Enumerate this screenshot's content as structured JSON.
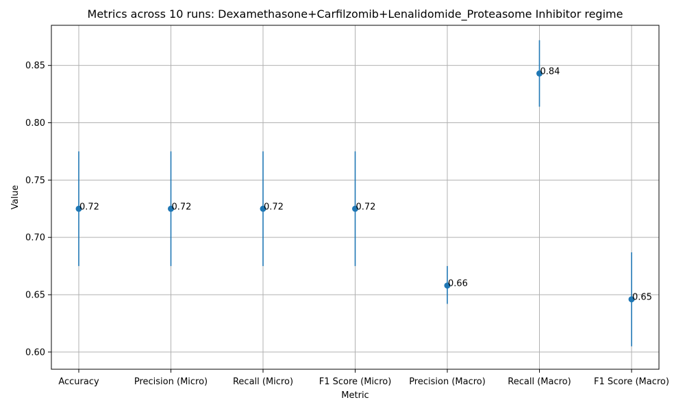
{
  "chart_data": {
    "type": "scatter",
    "title": "Metrics across 10 runs: Dexamethasone+Carfilzomib+Lenalidomide_Proteasome Inhibitor regime",
    "xlabel": "Metric",
    "ylabel": "Value",
    "categories": [
      "Accuracy",
      "Precision (Micro)",
      "Recall (Micro)",
      "F1 Score (Micro)",
      "Precision (Macro)",
      "Recall (Macro)",
      "F1 Score (Macro)"
    ],
    "values": [
      0.725,
      0.725,
      0.725,
      0.725,
      0.658,
      0.843,
      0.646
    ],
    "error_low": [
      0.675,
      0.675,
      0.675,
      0.675,
      0.642,
      0.814,
      0.605
    ],
    "error_high": [
      0.775,
      0.775,
      0.775,
      0.775,
      0.675,
      0.872,
      0.687
    ],
    "data_labels": [
      "0.72",
      "0.72",
      "0.72",
      "0.72",
      "0.66",
      "0.84",
      "0.65"
    ],
    "ylim": [
      0.585,
      0.885
    ],
    "yticks": [
      0.6,
      0.65,
      0.7,
      0.75,
      0.8,
      0.85
    ],
    "ytick_labels": [
      "0.60",
      "0.65",
      "0.70",
      "0.75",
      "0.80",
      "0.85"
    ],
    "grid": true,
    "legend": "none",
    "colors": {
      "marker": "#1f77b4",
      "grid": "#b0b0b0",
      "axis": "#000000"
    }
  }
}
